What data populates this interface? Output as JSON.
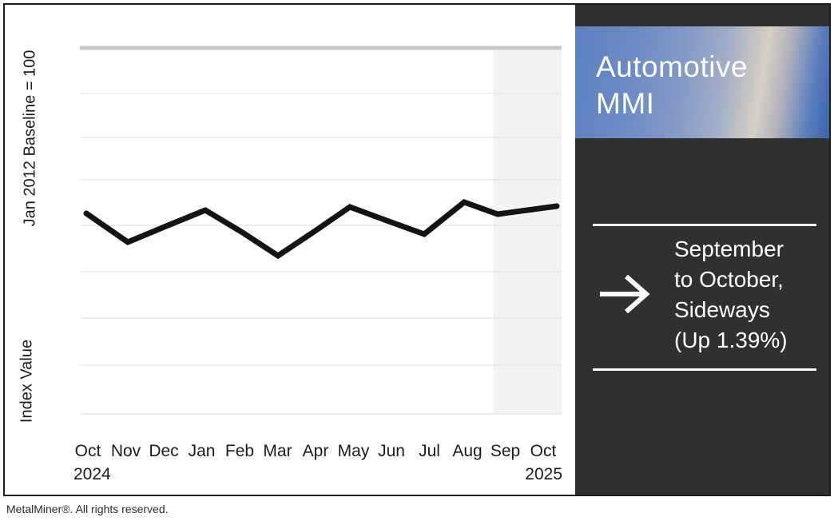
{
  "figure": {
    "footer": "MetalMiner®. All rights reserved."
  },
  "chart": {
    "y_axis_label_top": "Jan 2012 Baseline = 100",
    "y_axis_label_bottom": "Index Value",
    "x_year_start": "2024",
    "x_year_end": "2025"
  },
  "panel": {
    "title_line1": "Automotive",
    "title_line2": "MMI",
    "arrow_icon": "right-arrow",
    "trend_lines": [
      "September",
      "to October,",
      "Sideways",
      "(Up 1.39%)"
    ],
    "colors": {
      "panel_bg": "#322F30",
      "banner_blue_left": "#5D81C1",
      "banner_streak": "#D7CFC3",
      "banner_blue_right": "#3765AE",
      "text": "#FFFFFF"
    }
  },
  "chart_data": {
    "type": "line",
    "title": "Automotive MMI",
    "categories": [
      "Oct",
      "Nov",
      "Dec",
      "Jan",
      "Feb",
      "Mar",
      "Apr",
      "May",
      "Jun",
      "Jul",
      "Aug",
      "Sep",
      "Oct"
    ],
    "x_full": [
      "Oct 2024",
      "Nov 2024",
      "Dec 2024",
      "Jan 2025",
      "Feb 2025",
      "Mar 2025",
      "Apr 2025",
      "May 2025",
      "Jun 2025",
      "Jul 2025",
      "Aug 2025",
      "Sep 2025",
      "Oct 2025"
    ],
    "series": [
      {
        "name": "Automotive MMI",
        "values": [
          72.1,
          68.5,
          70.5,
          72.5,
          69.8,
          66.8,
          69.8,
          72.9,
          71.2,
          69.5,
          73.5,
          72.0,
          73.0
        ]
      }
    ],
    "xlabel": "",
    "ylabel": "Index Value",
    "y_axis_note": "Jan 2012 Baseline = 100",
    "yticks": [],
    "y_axis_ticks_labeled": false,
    "grid": "horizontal",
    "gridline_count": 9,
    "highlight_band": "Sep 2025 to Oct 2025",
    "line_color": "#141414",
    "band_color": "#F3F3F2",
    "change_pct": "Up 1.39%",
    "legend": "none"
  }
}
